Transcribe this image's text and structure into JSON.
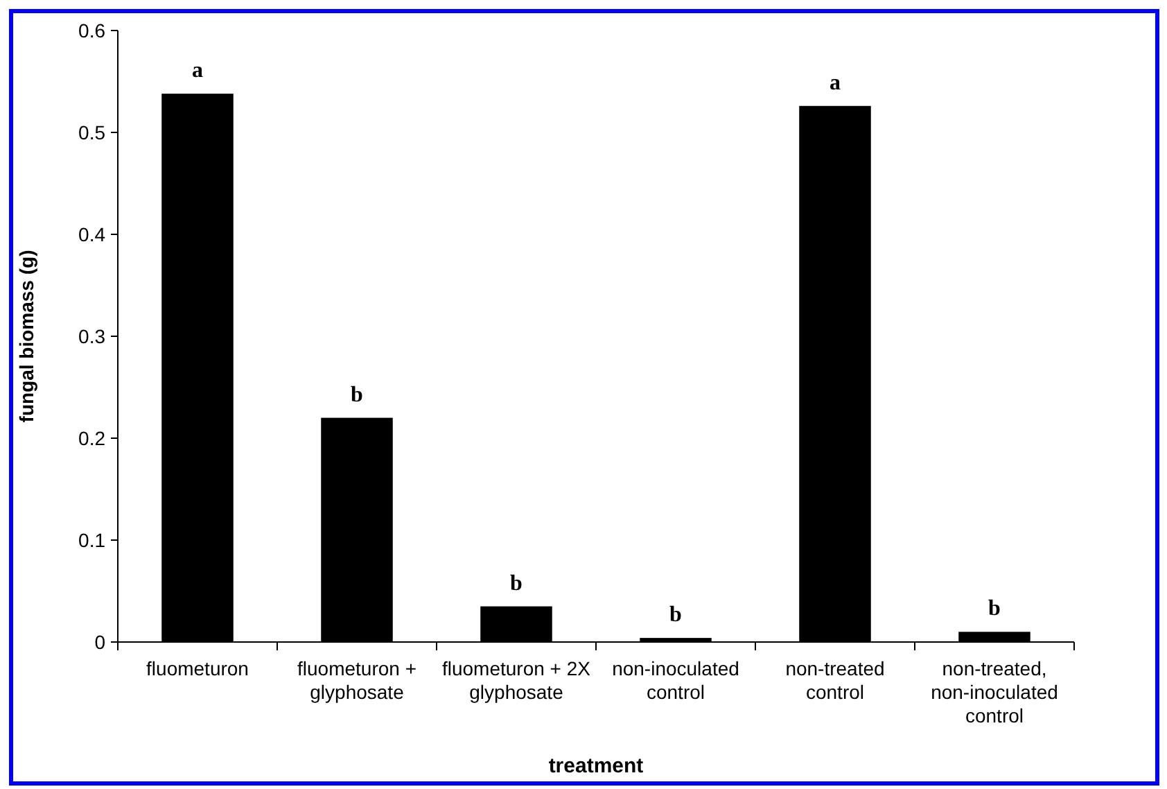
{
  "chart_data": {
    "type": "bar",
    "xlabel": "treatment",
    "ylabel": "fungal biomass (g)",
    "categories": [
      "fluometuron",
      "fluometuron + glyphosate",
      "fluometuron + 2X glyphosate",
      "non-inoculated control",
      "non-treated control",
      "non-treated, non-inoculated control"
    ],
    "values": [
      0.538,
      0.22,
      0.035,
      0.004,
      0.526,
      0.01
    ],
    "color": "#000000",
    "ylim": [
      0,
      0.6
    ],
    "yticks": [
      0,
      0.1,
      0.2,
      0.3,
      0.4,
      0.5,
      0.6
    ],
    "annotations": [
      {
        "text": "a",
        "x": "fluometuron",
        "y": 0.538
      },
      {
        "text": "b",
        "x": "fluometuron + glyphosate",
        "y": 0.22
      },
      {
        "text": "b",
        "x": "fluometuron + 2X glyphosate",
        "y": 0.035
      },
      {
        "text": "b",
        "x": "non-inoculated control",
        "y": 0.004
      },
      {
        "text": "a",
        "x": "non-treated control",
        "y": 0.526
      },
      {
        "text": "b",
        "x": "non-treated, non-inoculated control",
        "y": 0.01
      }
    ]
  }
}
